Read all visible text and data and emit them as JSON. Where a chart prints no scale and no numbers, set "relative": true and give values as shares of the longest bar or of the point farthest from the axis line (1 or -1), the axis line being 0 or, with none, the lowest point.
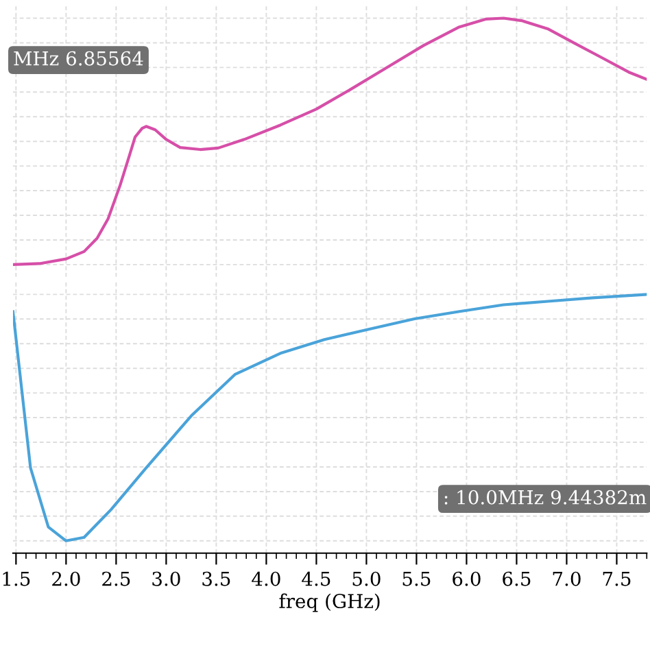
{
  "chart_data": [
    {
      "type": "line",
      "relative": true,
      "x": [
        1.47,
        1.734,
        2.0,
        2.18,
        2.31,
        2.42,
        2.54,
        2.63,
        2.69,
        2.76,
        2.8,
        2.89,
        3.0,
        3.14,
        3.34,
        3.52,
        3.78,
        4.14,
        4.5,
        4.85,
        5.21,
        5.57,
        5.92,
        6.19,
        6.37,
        6.55,
        6.81,
        7.08,
        7.35,
        7.62,
        7.8
      ],
      "series": [
        {
          "color": "#d64fa8",
          "values": [
            0,
            0.004,
            0.023,
            0.053,
            0.107,
            0.186,
            0.322,
            0.439,
            0.518,
            0.553,
            0.561,
            0.547,
            0.508,
            0.475,
            0.467,
            0.473,
            0.508,
            0.566,
            0.631,
            0.713,
            0.801,
            0.889,
            0.963,
            0.996,
            1,
            0.99,
            0.957,
            0.898,
            0.84,
            0.781,
            0.752
          ]
        }
      ],
      "xlim": [
        1.47,
        7.8
      ],
      "xticks": [
        1.5,
        2.0,
        2.5,
        3.0,
        3.5,
        4.0,
        4.5,
        5.0,
        5.5,
        6.0,
        6.5,
        7.0,
        7.5
      ],
      "tick_labels": false,
      "grid": true,
      "annotations": [
        "MHz 6.85564"
      ]
    },
    {
      "type": "line",
      "relative": true,
      "x": [
        1.47,
        1.645,
        1.823,
        2.0,
        2.18,
        2.45,
        2.8,
        3.25,
        3.69,
        4.14,
        4.58,
        5.03,
        5.48,
        5.92,
        6.37,
        6.81,
        7.26,
        7.8
      ],
      "series": [
        {
          "color": "#4aa3d9",
          "values": [
            0.93,
            0.296,
            0.056,
            0,
            0.014,
            0.127,
            0.296,
            0.507,
            0.676,
            0.761,
            0.817,
            0.859,
            0.901,
            0.93,
            0.958,
            0.972,
            0.986,
            1
          ]
        }
      ],
      "xlim": [
        1.47,
        7.8
      ],
      "xticks": [
        1.5,
        {
          "value": 2,
          "label": "2.0"
        },
        2.5,
        {
          "value": 3,
          "label": "3.0"
        },
        3.5,
        {
          "value": 4,
          "label": "4.0"
        },
        4.5,
        {
          "value": 5,
          "label": "5.0"
        },
        5.5,
        {
          "value": 6,
          "label": "6.0"
        },
        6.5,
        {
          "value": 7,
          "label": "7.0"
        },
        7.5
      ],
      "tick_labels": "x",
      "grid": true,
      "xlabel": "freq (GHz)",
      "annotations": [
        ": 10.0MHz 9.44382m"
      ]
    }
  ]
}
